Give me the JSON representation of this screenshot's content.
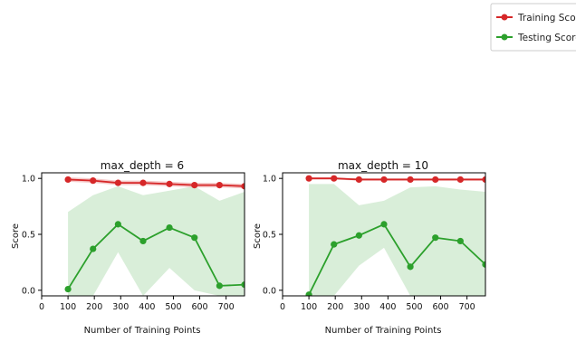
{
  "legend": {
    "placement": "top-right",
    "items": [
      {
        "label": "Training Score",
        "color": "#d62728"
      },
      {
        "label": "Testing Score",
        "color": "#2ca02c"
      }
    ]
  },
  "chart_data": [
    {
      "type": "line",
      "title": "max_depth = 6",
      "xlabel": "Number of Training Points",
      "ylabel": "Score",
      "xlim": [
        0,
        770
      ],
      "ylim": [
        -0.05,
        1.05
      ],
      "xticks": [
        0,
        100,
        200,
        300,
        400,
        500,
        600,
        700
      ],
      "yticks": [
        0.0,
        0.5,
        1.0
      ],
      "ytick_labels": [
        "0.0",
        "0.5",
        "1.0"
      ],
      "grid": false,
      "x": [
        100,
        195,
        290,
        385,
        485,
        580,
        675,
        770
      ],
      "series": [
        {
          "name": "Training Score",
          "color": "#d62728",
          "values": [
            0.99,
            0.98,
            0.96,
            0.96,
            0.95,
            0.94,
            0.94,
            0.93
          ],
          "band_upper": [
            1.01,
            1.0,
            0.98,
            0.98,
            0.97,
            0.96,
            0.96,
            0.95
          ],
          "band_lower": [
            0.97,
            0.96,
            0.94,
            0.94,
            0.93,
            0.92,
            0.92,
            0.91
          ]
        },
        {
          "name": "Testing Score",
          "color": "#2ca02c",
          "values": [
            0.01,
            0.37,
            0.59,
            0.44,
            0.56,
            0.47,
            0.04,
            0.05
          ],
          "band_upper": [
            0.7,
            0.85,
            0.93,
            0.85,
            0.89,
            0.93,
            0.8,
            0.88
          ],
          "band_lower": [
            -0.05,
            -0.05,
            0.34,
            -0.05,
            0.2,
            0.0,
            -0.05,
            -0.05
          ]
        }
      ]
    },
    {
      "type": "line",
      "title": "max_depth = 10",
      "xlabel": "Number of Training Points",
      "ylabel": "Score",
      "xlim": [
        0,
        770
      ],
      "ylim": [
        -0.05,
        1.05
      ],
      "xticks": [
        0,
        100,
        200,
        300,
        400,
        500,
        600,
        700
      ],
      "yticks": [
        0.0,
        0.5,
        1.0
      ],
      "ytick_labels": [
        "0.0",
        "0.5",
        "1.0"
      ],
      "grid": false,
      "x": [
        100,
        195,
        290,
        385,
        485,
        580,
        675,
        770
      ],
      "series": [
        {
          "name": "Training Score",
          "color": "#d62728",
          "values": [
            1.0,
            1.0,
            0.99,
            0.99,
            0.99,
            0.99,
            0.99,
            0.99
          ],
          "band_upper": [
            1.01,
            1.01,
            1.0,
            1.0,
            1.0,
            1.0,
            1.0,
            1.0
          ],
          "band_lower": [
            0.99,
            0.99,
            0.98,
            0.98,
            0.98,
            0.98,
            0.98,
            0.98
          ]
        },
        {
          "name": "Testing Score",
          "color": "#2ca02c",
          "values": [
            -0.04,
            0.41,
            0.49,
            0.59,
            0.21,
            0.47,
            0.44,
            0.23
          ],
          "band_upper": [
            0.95,
            0.95,
            0.76,
            0.8,
            0.92,
            0.93,
            0.9,
            0.88
          ],
          "band_lower": [
            -0.05,
            -0.05,
            0.22,
            0.38,
            -0.05,
            -0.05,
            -0.05,
            -0.05
          ]
        }
      ]
    }
  ]
}
